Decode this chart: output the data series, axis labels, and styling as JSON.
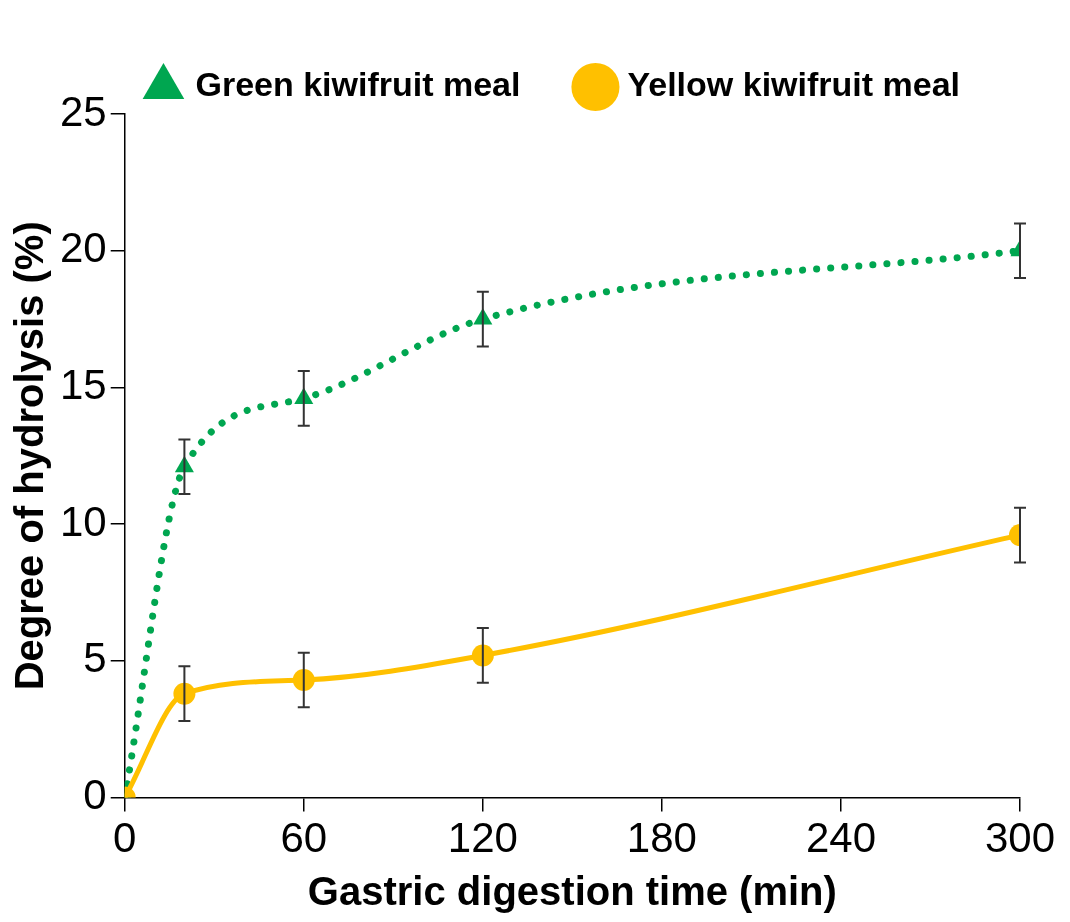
{
  "chart_data": {
    "type": "line",
    "xlabel": "Gastric digestion time (min)",
    "ylabel": "Degree of hydrolysis (%)",
    "x": [
      0,
      20,
      60,
      120,
      300
    ],
    "series": [
      {
        "name": "Green kiwifruit meal",
        "color": "#00a650",
        "values": [
          0,
          12.1,
          14.6,
          17.5,
          20.0
        ],
        "errors": [
          null,
          1,
          1,
          1,
          1
        ],
        "marker": "triangle",
        "line_style": "dotted"
      },
      {
        "name": "Yellow kiwifruit meal",
        "color": "#ffc000",
        "values": [
          0,
          3.8,
          4.3,
          5.2,
          9.6
        ],
        "errors": [
          null,
          1,
          1,
          1,
          1
        ],
        "marker": "circle",
        "line_style": "solid"
      }
    ],
    "xlim": [
      0,
      300
    ],
    "xticks": [
      0,
      60,
      120,
      180,
      240,
      300
    ],
    "ylim": [
      0,
      25
    ],
    "yticks": [
      0,
      5,
      10,
      15,
      20,
      25
    ],
    "grid": false,
    "legend": "top right"
  }
}
